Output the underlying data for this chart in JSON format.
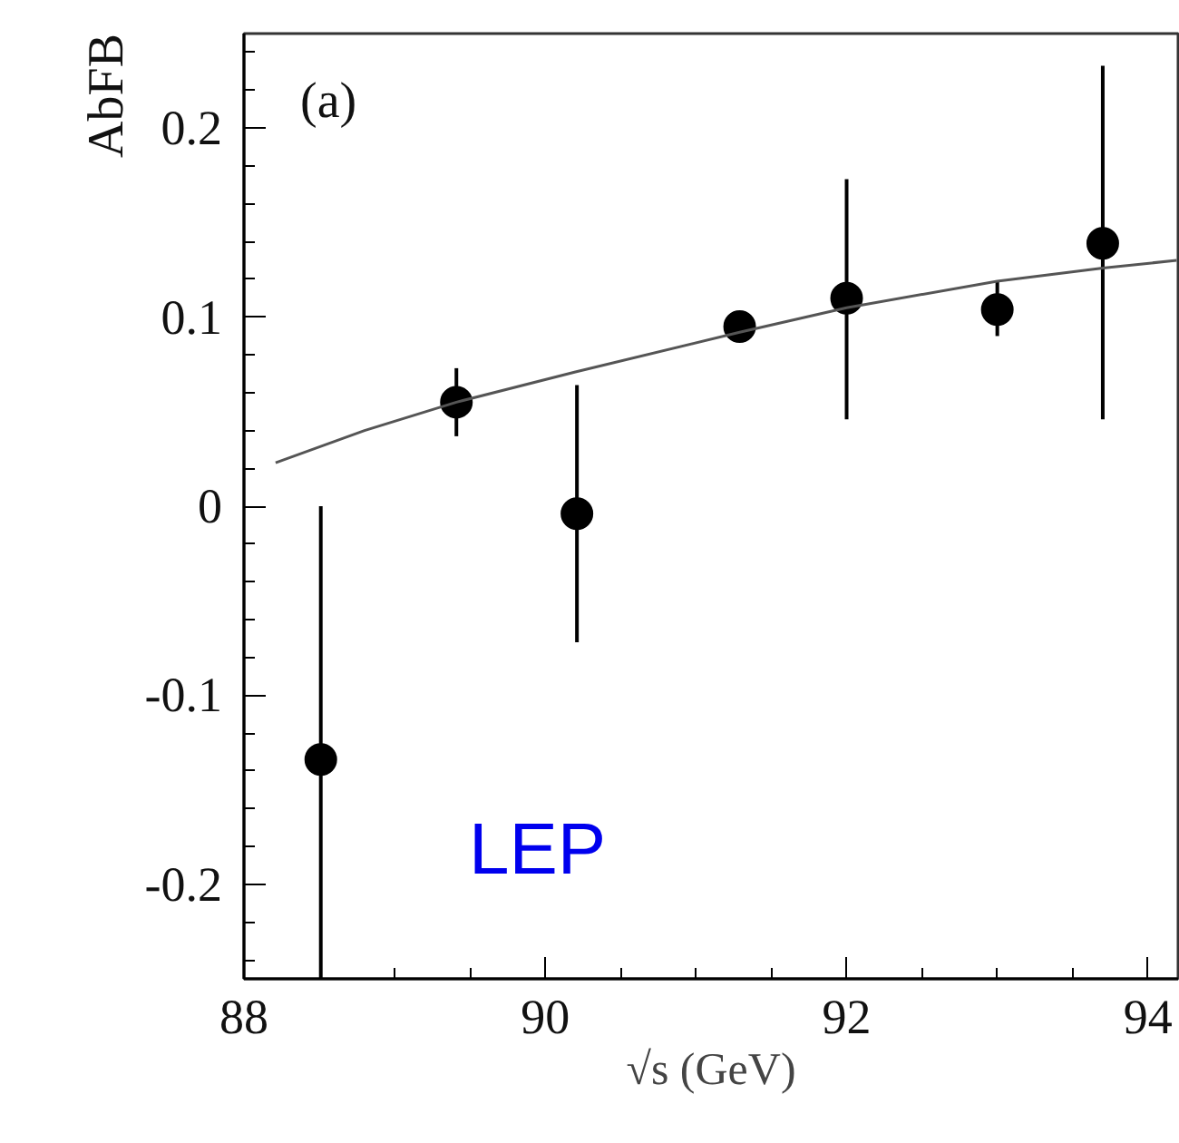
{
  "chart_data": {
    "type": "scatter",
    "ylabel": "AbFB",
    "xlabel": "√s (GeV)",
    "annotations": [
      "(a)",
      "LEP"
    ],
    "series": [
      {
        "type": "scatter",
        "color": "#000000",
        "marker": "circle",
        "x": [
          88.51,
          89.41,
          90.21,
          91.29,
          92.0,
          93.0,
          93.7
        ],
        "values": [
          -0.134,
          0.055,
          -0.004,
          0.095,
          0.11,
          0.104,
          0.139
        ],
        "errors": [
          [
            -0.25,
            0.0
          ],
          0.018,
          [
            -0.072,
            0.064
          ],
          null,
          [
            0.046,
            0.173
          ],
          [
            0.09,
            0.119
          ],
          [
            0.046,
            0.233
          ]
        ]
      },
      {
        "type": "line",
        "color": "#555555",
        "line_style": "solid",
        "x": [
          88.21,
          88.8,
          89.41,
          90.2,
          91.29,
          92.0,
          93.0,
          93.7,
          94.19
        ],
        "values": [
          0.023,
          0.04,
          0.055,
          0.071,
          0.092,
          0.105,
          0.119,
          0.126,
          0.13
        ]
      }
    ],
    "xlim": [
      88,
      94.2
    ],
    "ylim": [
      -0.25,
      0.25
    ],
    "xticks": [
      88,
      {
        "value": 88.5,
        "label": null
      },
      {
        "value": 89,
        "label": null
      },
      {
        "value": 89.5,
        "label": null
      },
      90,
      {
        "value": 90.5,
        "label": null
      },
      {
        "value": 91,
        "label": null
      },
      {
        "value": 91.5,
        "label": null
      },
      92,
      {
        "value": 92.5,
        "label": null
      },
      {
        "value": 93,
        "label": null
      },
      {
        "value": 93.5,
        "label": null
      },
      94
    ],
    "yticks": [
      {
        "value": -0.24,
        "label": null
      },
      {
        "value": -0.22,
        "label": null
      },
      -0.2,
      {
        "value": -0.18,
        "label": null
      },
      {
        "value": -0.16,
        "label": null
      },
      {
        "value": -0.14,
        "label": null
      },
      {
        "value": -0.12,
        "label": null
      },
      -0.1,
      {
        "value": -0.08,
        "label": null
      },
      {
        "value": -0.06,
        "label": null
      },
      {
        "value": -0.04,
        "label": null
      },
      {
        "value": -0.02,
        "label": null
      },
      0,
      {
        "value": 0.02,
        "label": null
      },
      {
        "value": 0.04,
        "label": null
      },
      {
        "value": 0.06,
        "label": null
      },
      {
        "value": 0.08,
        "label": null
      },
      0.1,
      {
        "value": 0.12,
        "label": null
      },
      {
        "value": 0.14,
        "label": null
      },
      {
        "value": 0.16,
        "label": null
      },
      {
        "value": 0.18,
        "label": null
      },
      0.2,
      {
        "value": 0.22,
        "label": null
      },
      {
        "value": 0.24,
        "label": null
      }
    ],
    "grid": false
  }
}
